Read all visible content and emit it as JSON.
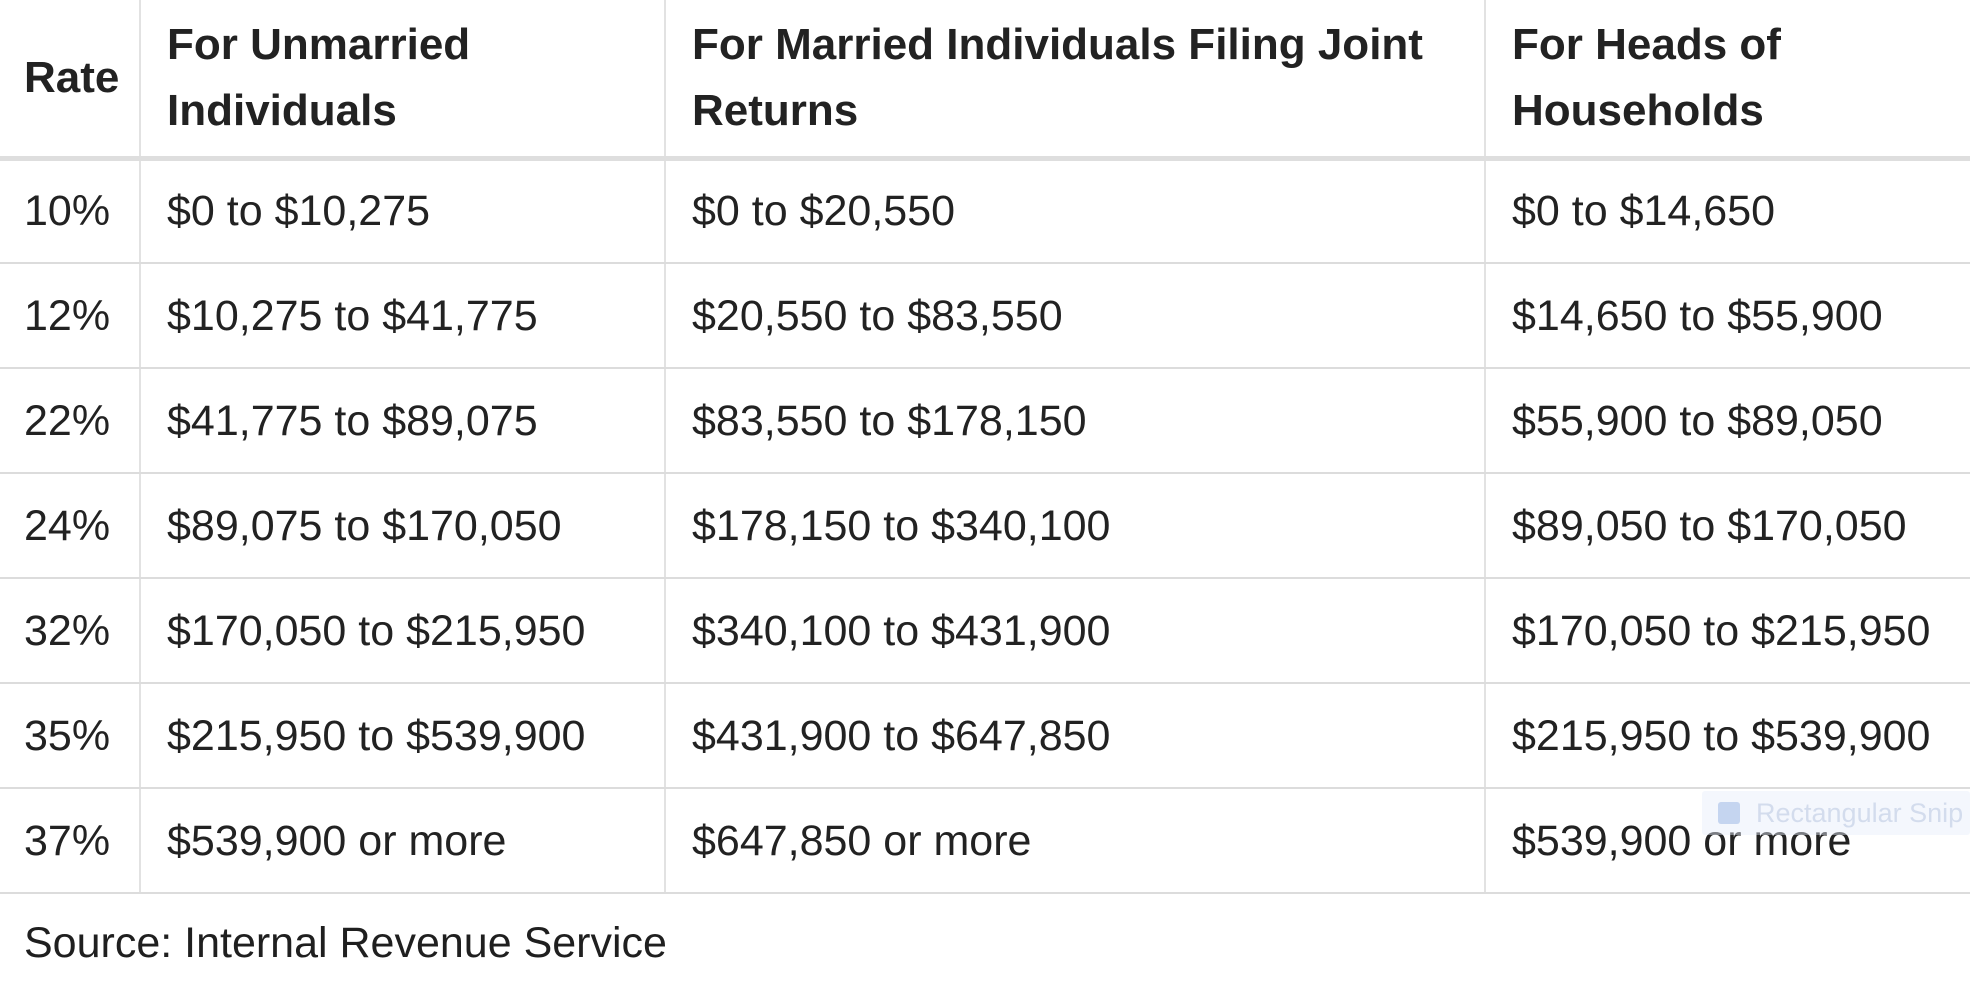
{
  "table": {
    "headers": [
      "Rate",
      "For Unmarried Individuals",
      "For Married Individuals Filing Joint Returns",
      "For Heads of Households"
    ],
    "rows": [
      [
        "10%",
        "$0 to $10,275",
        "$0 to $20,550",
        "$0 to $14,650"
      ],
      [
        "12%",
        "$10,275 to $41,775",
        "$20,550 to $83,550",
        "$14,650 to $55,900"
      ],
      [
        "22%",
        "$41,775 to $89,075",
        "$83,550 to $178,150",
        "$55,900 to $89,050"
      ],
      [
        "24%",
        "$89,075 to $170,050",
        "$178,150 to $340,100",
        "$89,050 to $170,050"
      ],
      [
        "32%",
        "$170,050 to $215,950",
        "$340,100 to $431,900",
        "$170,050 to $215,950"
      ],
      [
        "35%",
        "$215,950 to $539,900",
        "$431,900 to $647,850",
        "$215,950 to $539,900"
      ],
      [
        "37%",
        "$539,900 or more",
        "$647,850 or more",
        "$539,900 or more"
      ]
    ]
  },
  "source": "Source: Internal Revenue Service",
  "overlay": {
    "label": "Rectangular Snip",
    "icon": "snip-icon"
  }
}
